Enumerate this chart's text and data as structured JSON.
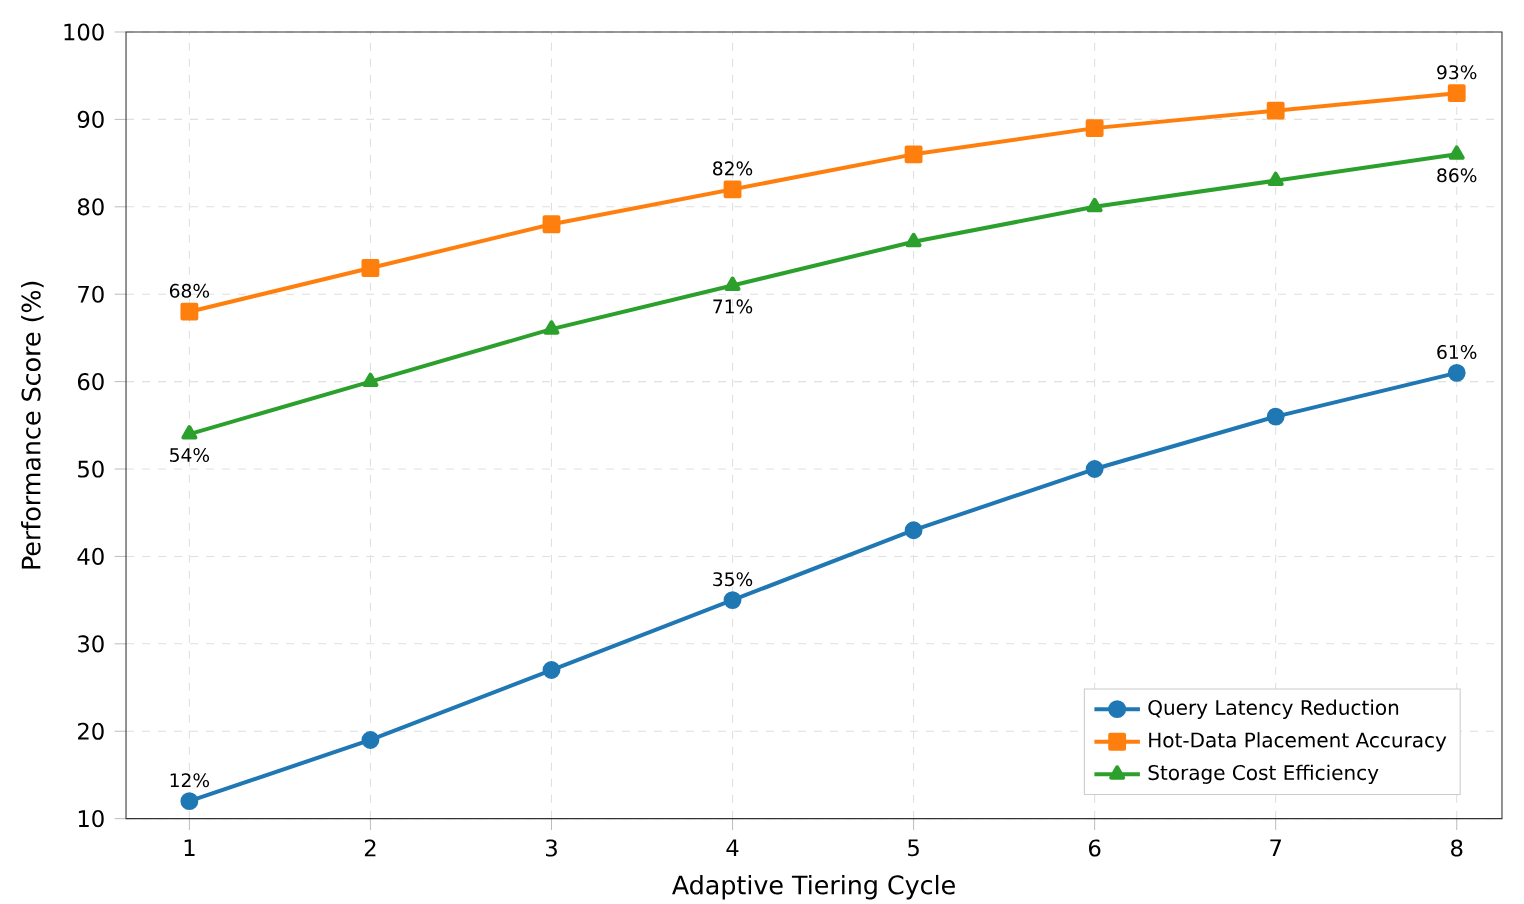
{
  "chart_data": {
    "type": "line",
    "xlabel": "Adaptive Tiering Cycle",
    "ylabel": "Performance Score (%)",
    "x": [
      1,
      2,
      3,
      4,
      5,
      6,
      7,
      8
    ],
    "xlim": [
      0.65,
      8.25
    ],
    "xticks": [
      1,
      2,
      3,
      4,
      5,
      6,
      7,
      8
    ],
    "ylim": [
      10,
      100
    ],
    "yticks": [
      10,
      20,
      30,
      40,
      50,
      60,
      70,
      80,
      90,
      100
    ],
    "grid": true,
    "legend": "bottom right",
    "line_style": "solid",
    "series": [
      {
        "name": "Query Latency Reduction",
        "color": "#1f77b4",
        "marker": "circle",
        "values": [
          12,
          19,
          27,
          35,
          43,
          50,
          56,
          61
        ],
        "value_labels": [
          "12%",
          null,
          null,
          "35%",
          null,
          null,
          null,
          "61%"
        ]
      },
      {
        "name": "Hot-Data Placement Accuracy",
        "color": "#ff7f0e",
        "marker": "square",
        "values": [
          68,
          73,
          78,
          82,
          86,
          89,
          91,
          93
        ],
        "value_labels": [
          "68%",
          null,
          null,
          "82%",
          null,
          null,
          null,
          "93%"
        ]
      },
      {
        "name": "Storage Cost Efficiency",
        "color": "#2ca02c",
        "marker": "triangle",
        "values": [
          54,
          60,
          66,
          71,
          76,
          80,
          83,
          86
        ],
        "value_labels": [
          "54%",
          null,
          null,
          "71%",
          null,
          null,
          null,
          "86%"
        ]
      }
    ]
  }
}
